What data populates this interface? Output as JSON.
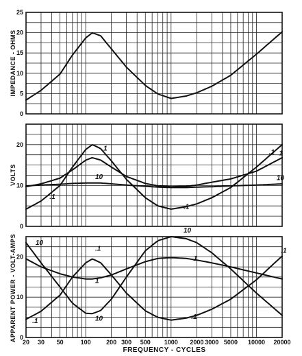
{
  "chart_data": [
    {
      "type": "line",
      "ylabel": "IMPEDANCE - OHMS",
      "xscale": "log",
      "xlim": [
        20,
        20000
      ],
      "ylim": [
        0,
        25
      ],
      "yticks": [
        0,
        5,
        10,
        15,
        20,
        25
      ],
      "grid": true,
      "series": [
        {
          "name": "",
          "x": [
            20,
            30,
            50,
            70,
            100,
            120,
            150,
            200,
            300,
            500,
            700,
            1000,
            1500,
            2000,
            3000,
            5000,
            10000,
            20000
          ],
          "y": [
            3.4,
            5.8,
            9.8,
            14.5,
            18.7,
            20,
            19.2,
            16,
            11.5,
            7,
            4.9,
            3.8,
            4.4,
            5.2,
            6.8,
            9.5,
            14.7,
            20.2
          ]
        }
      ]
    },
    {
      "type": "line",
      "ylabel": "VOLTS",
      "xscale": "log",
      "xlim": [
        20,
        20000
      ],
      "ylim": [
        0,
        25
      ],
      "yticks": [
        0,
        10,
        20
      ],
      "grid": true,
      "series": [
        {
          "name": "1",
          "x": [
            20,
            30,
            50,
            70,
            100,
            120,
            150,
            200,
            300,
            500,
            700,
            1000,
            1500,
            2000,
            3000,
            5000,
            10000,
            20000
          ],
          "y": [
            9.7,
            10.4,
            11.8,
            13.8,
            16.2,
            16.8,
            16.2,
            14.5,
            12.2,
            10.5,
            9.9,
            9.7,
            9.8,
            10.1,
            10.8,
            11.6,
            13.5,
            16.8
          ]
        },
        {
          "name": ".1",
          "x": [
            20,
            30,
            50,
            70,
            100,
            120,
            150,
            200,
            300,
            500,
            700,
            1000,
            1500,
            2000,
            3000,
            5000,
            10000,
            20000
          ],
          "y": [
            4.2,
            6.2,
            10,
            14.5,
            18.8,
            20,
            19,
            16,
            11.5,
            7,
            5,
            4.2,
            4.8,
            5.5,
            7,
            9.5,
            14.5,
            20
          ]
        },
        {
          "name": "10",
          "x": [
            20,
            30,
            50,
            70,
            100,
            120,
            150,
            200,
            300,
            500,
            700,
            1000,
            1500,
            2000,
            3000,
            5000,
            10000,
            20000
          ],
          "y": [
            9.9,
            10.1,
            10.3,
            10.5,
            10.6,
            10.6,
            10.6,
            10.4,
            10.1,
            9.8,
            9.6,
            9.5,
            9.5,
            9.6,
            9.7,
            9.9,
            10.1,
            10.4
          ]
        }
      ]
    },
    {
      "type": "line",
      "ylabel": "APPARENT POWER - VOLT-AMPS",
      "xlabel": "FREQUENCY - CYCLES",
      "xscale": "log",
      "xlim": [
        20,
        20000
      ],
      "ylim": [
        0,
        25
      ],
      "yticks": [
        0,
        10,
        20
      ],
      "xticks": [
        20,
        30,
        50,
        100,
        200,
        300,
        500,
        1000,
        2000,
        3000,
        5000,
        10000,
        20000
      ],
      "xticklabels": [
        "20",
        "30",
        "50",
        "100",
        "200",
        "300",
        "500",
        "1000",
        "2000",
        "3000",
        "5000",
        "10000",
        "20000"
      ],
      "grid": true,
      "series": [
        {
          "name": "10",
          "x": [
            20,
            30,
            50,
            70,
            100,
            120,
            150,
            200,
            300,
            500,
            700,
            1000,
            1500,
            2000,
            3000,
            5000,
            10000,
            20000
          ],
          "y": [
            23.5,
            18.5,
            12.5,
            8.5,
            6,
            5.9,
            6.7,
            9.5,
            15,
            21.5,
            24,
            25,
            24.5,
            23.5,
            21,
            17,
            11,
            5.5
          ]
        },
        {
          "name": ".1",
          "x": [
            20,
            30,
            50,
            70,
            100,
            120,
            150,
            200,
            300,
            500,
            700,
            1000,
            1500,
            2000,
            3000,
            5000,
            10000,
            20000
          ],
          "y": [
            4.5,
            6.5,
            10.5,
            15,
            18.5,
            19.5,
            18.5,
            15.5,
            11,
            6.6,
            5,
            4.3,
            4.8,
            5.5,
            7,
            9.5,
            14.3,
            20.2
          ]
        },
        {
          "name": "1",
          "x": [
            20,
            30,
            50,
            70,
            100,
            120,
            150,
            200,
            300,
            500,
            700,
            1000,
            1500,
            2000,
            3000,
            5000,
            10000,
            20000
          ],
          "y": [
            19.5,
            17.5,
            15.8,
            15,
            14.5,
            14.5,
            14.8,
            15.5,
            17,
            18.8,
            19.6,
            19.8,
            19.6,
            19.2,
            18.5,
            17.5,
            16,
            14.5
          ]
        }
      ]
    }
  ]
}
